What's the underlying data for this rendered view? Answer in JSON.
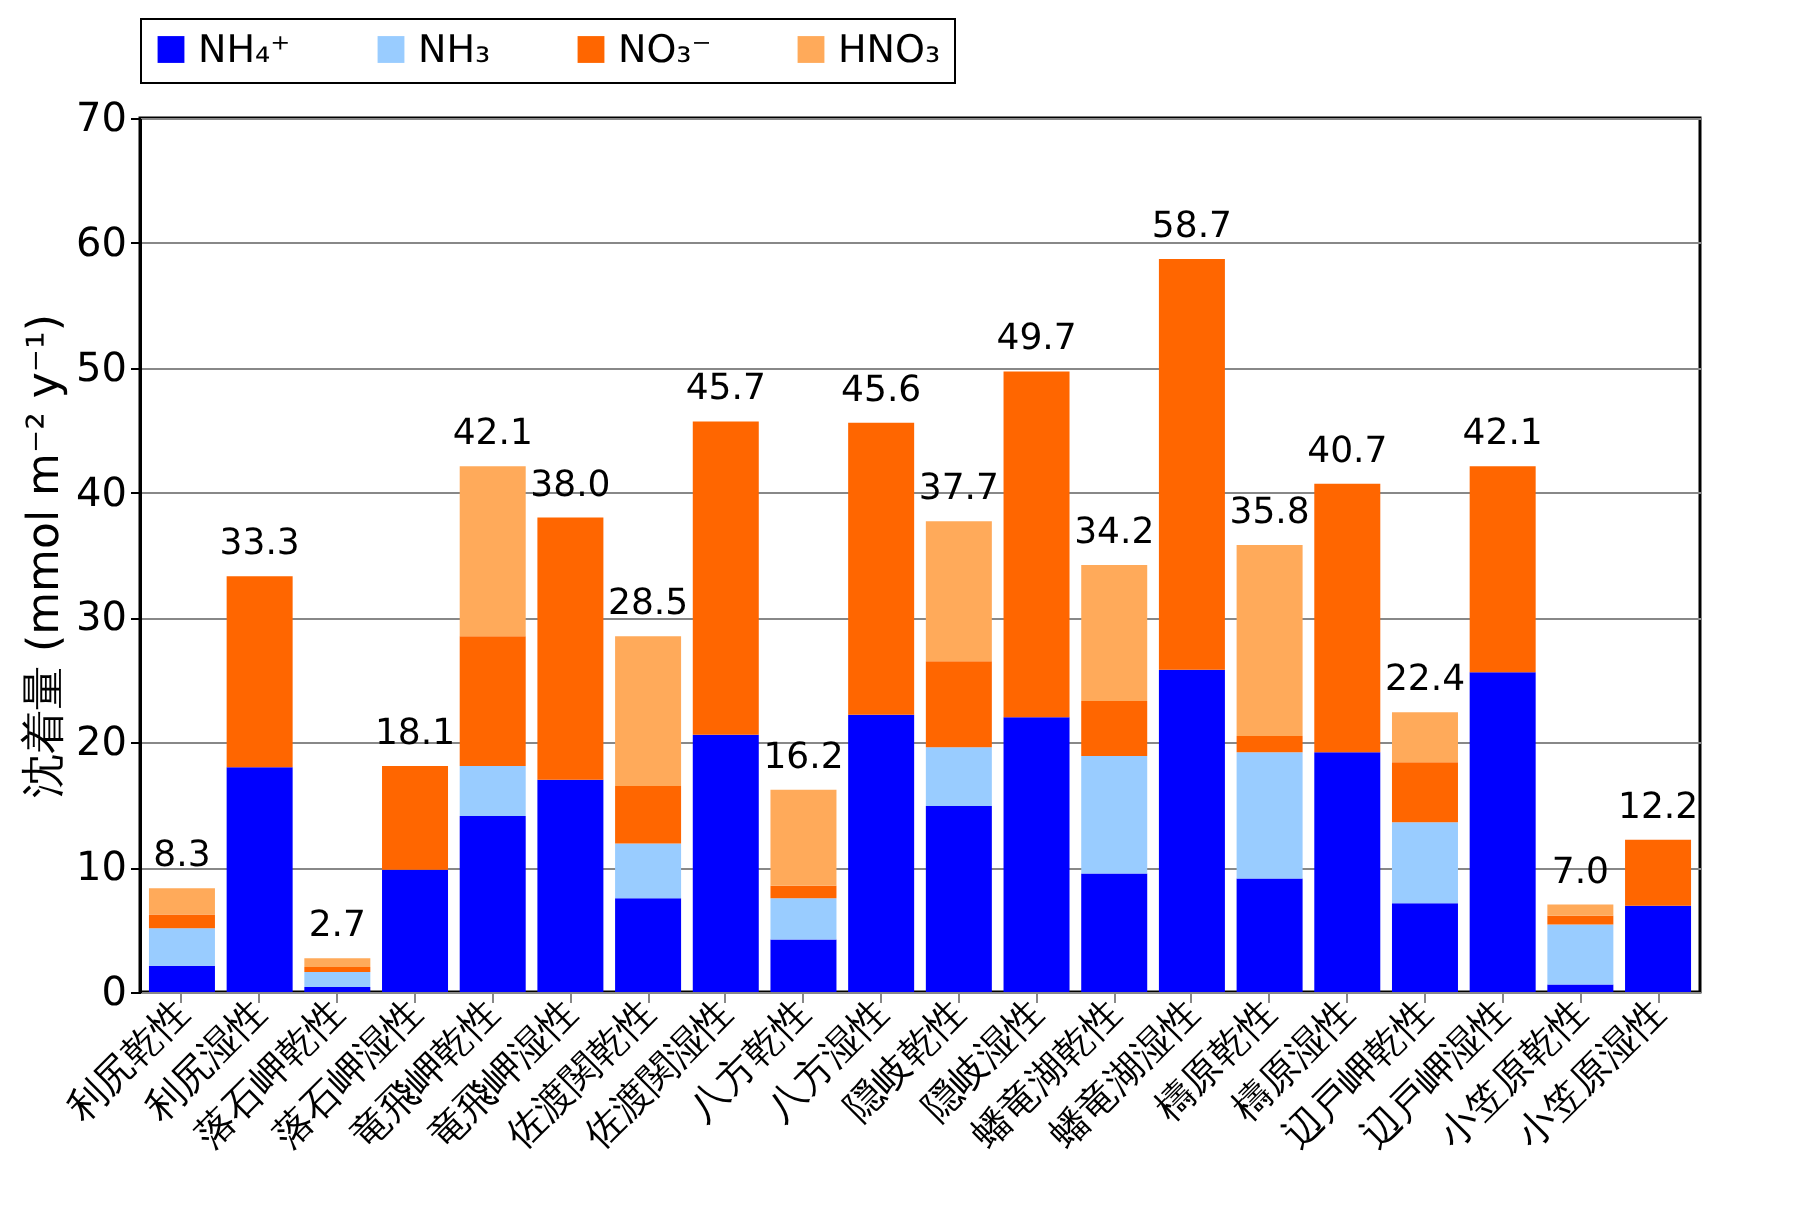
{
  "chart_data": {
    "type": "bar",
    "stacked": true,
    "ylabel": "沈着量 (mmol m⁻² y⁻¹)",
    "categories": [
      "利尻乾性",
      "利尻湿性",
      "落石岬乾性",
      "落石岬湿性",
      "竜飛岬乾性",
      "竜飛岬湿性",
      "佐渡関乾性",
      "佐渡関湿性",
      "八方乾性",
      "八方湿性",
      "隠岐乾性",
      "隠岐湿性",
      "蟠竜湖乾性",
      "蟠竜湖湿性",
      "檮原乾性",
      "檮原湿性",
      "辺戸岬乾性",
      "辺戸岬湿性",
      "小笠原乾性",
      "小笠原湿性"
    ],
    "series": [
      {
        "name": "NH₄⁺",
        "color": "#0000ff",
        "values": [
          2.1,
          18.0,
          0.4,
          9.8,
          14.1,
          17.0,
          7.5,
          20.6,
          4.2,
          22.2,
          14.9,
          22.0,
          9.5,
          25.8,
          9.1,
          19.2,
          7.1,
          25.6,
          0.6,
          6.9
        ]
      },
      {
        "name": "NH₃",
        "color": "#99ccff",
        "values": [
          3.0,
          null,
          1.2,
          null,
          4.0,
          null,
          4.4,
          null,
          3.3,
          null,
          4.7,
          null,
          9.4,
          null,
          10.1,
          null,
          6.5,
          null,
          4.8,
          null
        ]
      },
      {
        "name": "NO₃⁻",
        "color": "#ff6600",
        "values": [
          1.1,
          15.3,
          0.4,
          8.3,
          10.4,
          21.0,
          4.6,
          25.1,
          1.0,
          23.4,
          6.9,
          27.7,
          4.4,
          32.9,
          1.3,
          21.5,
          4.8,
          16.5,
          0.7,
          5.3
        ]
      },
      {
        "name": "HNO₃",
        "color": "#ffaa5a",
        "values": [
          2.1,
          null,
          0.7,
          null,
          13.6,
          null,
          12.0,
          null,
          7.7,
          null,
          11.2,
          null,
          10.9,
          null,
          15.3,
          null,
          4.0,
          null,
          0.9,
          null
        ]
      }
    ],
    "totals": [
      "8.3",
      "33.3",
      "2.7",
      "18.1",
      "42.1",
      "38.0",
      "28.5",
      "45.7",
      "16.2",
      "45.6",
      "37.7",
      "49.7",
      "34.2",
      "58.7",
      "35.8",
      "40.7",
      "22.4",
      "42.1",
      "7.0",
      "12.2"
    ],
    "ylim": [
      0,
      70
    ],
    "yticks": [
      0,
      10,
      20,
      30,
      40,
      50,
      60,
      70
    ],
    "grid": "y",
    "legend": "top"
  }
}
